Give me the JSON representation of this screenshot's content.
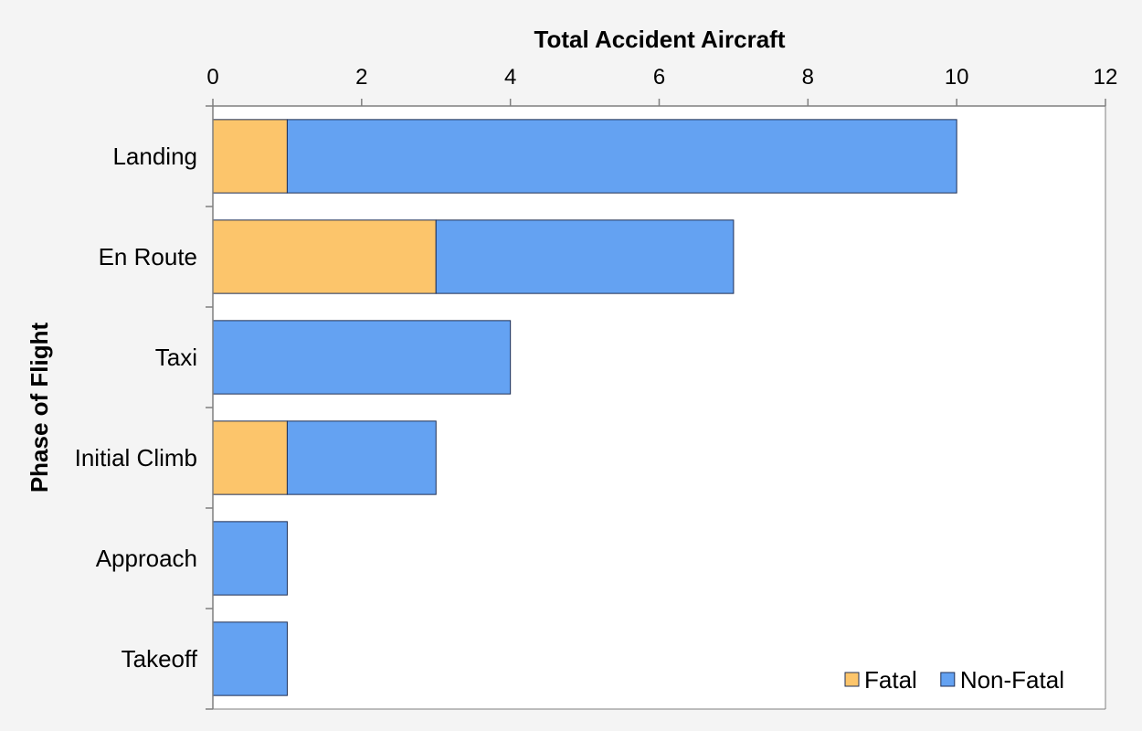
{
  "chart_data": {
    "type": "bar",
    "orientation": "horizontal",
    "stacked": true,
    "xlabel": "Total Accident Aircraft",
    "ylabel": "Phase of Flight",
    "xlim": [
      0,
      12
    ],
    "x_ticks": [
      0,
      2,
      4,
      6,
      8,
      10,
      12
    ],
    "x_axis_position": "top",
    "grid": false,
    "legend_position": "bottom-right",
    "categories": [
      "Landing",
      "En Route",
      "Taxi",
      "Initial Climb",
      "Approach",
      "Takeoff"
    ],
    "series": [
      {
        "name": "Fatal",
        "color": "#fcc56b",
        "values": [
          1,
          3,
          0,
          1,
          0,
          0
        ]
      },
      {
        "name": "Non-Fatal",
        "color": "#64a2f2",
        "values": [
          9,
          4,
          4,
          2,
          1,
          1
        ]
      }
    ]
  }
}
